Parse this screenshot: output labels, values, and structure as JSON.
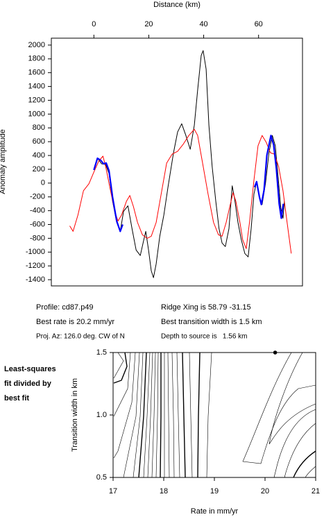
{
  "chart_data": [
    {
      "type": "line",
      "xlabel": "Distance (km)",
      "ylabel": "Anomaly amplitude",
      "xlim": [
        -15.5,
        76
      ],
      "xticks": [
        0,
        20,
        40,
        60
      ],
      "ylim": [
        -1490,
        2100
      ],
      "yticks": [
        -1400,
        -1200,
        -1000,
        -800,
        -600,
        -400,
        -200,
        0,
        200,
        400,
        600,
        800,
        1000,
        1200,
        1400,
        1600,
        1800,
        2000
      ],
      "series": [
        {
          "color": "#000000",
          "width": 1,
          "x": [
            0,
            1.3,
            2.8,
            4.3,
            5.5,
            6.8,
            8.3,
            9.6,
            10.8,
            12.4,
            13.9,
            15.4,
            16.9,
            18.2,
            18.9,
            19.9,
            20.9,
            21.7,
            22.7,
            24,
            25.5,
            27,
            29,
            30.5,
            32,
            33.5,
            35.1,
            36.6,
            37.8,
            39.1,
            39.8,
            40.9,
            41.9,
            43.1,
            44.4,
            45.6,
            46.7,
            47.9,
            49.2,
            50.4,
            51.2,
            52.5,
            53.7,
            55,
            56.2,
            57.3,
            58.3,
            59.3,
            60.3,
            61.3,
            62.5,
            63.8,
            65,
            66.1,
            67.1,
            68.1,
            68.9,
            69.4
          ],
          "values": [
            190,
            360,
            280,
            270,
            140,
            -260,
            -570,
            -700,
            -410,
            -330,
            -660,
            -970,
            -1050,
            -820,
            -700,
            -970,
            -1270,
            -1370,
            -1170,
            -770,
            -460,
            -60,
            440,
            740,
            860,
            690,
            490,
            840,
            1350,
            1850,
            1920,
            1650,
            840,
            240,
            -260,
            -660,
            -870,
            -920,
            -660,
            -40,
            -210,
            -570,
            -820,
            -1020,
            -1070,
            -660,
            -160,
            20,
            -210,
            -310,
            -10,
            440,
            690,
            540,
            90,
            -360,
            -510,
            -260
          ]
        },
        {
          "color": "#ff0000",
          "width": 1,
          "x": [
            -8.8,
            -7.6,
            -5.8,
            -3.8,
            -1.8,
            0,
            1.8,
            3.3,
            4.3,
            5.8,
            7.6,
            8.8,
            10.1,
            11.9,
            13.1,
            14.4,
            15.9,
            17.7,
            19.4,
            20.9,
            22.7,
            24.5,
            26.5,
            28.5,
            30.5,
            32.5,
            34.6,
            36.6,
            37.8,
            39.6,
            41.6,
            43.6,
            45.4,
            46.7,
            48.2,
            49.7,
            50.7,
            51.7,
            53.2,
            54.2,
            55.5,
            56.7,
            58.3,
            59.8,
            61.3,
            62.8,
            64.3,
            65.8,
            67.3,
            68.9,
            70.4,
            71.9
          ],
          "values": [
            -620,
            -700,
            -460,
            -110,
            -10,
            160,
            320,
            390,
            240,
            -60,
            -410,
            -550,
            -460,
            -260,
            -180,
            -340,
            -570,
            -750,
            -800,
            -770,
            -570,
            -160,
            290,
            420,
            460,
            560,
            690,
            780,
            690,
            290,
            -160,
            -570,
            -750,
            -770,
            -570,
            -310,
            -140,
            -260,
            -570,
            -820,
            -950,
            -570,
            40,
            540,
            690,
            590,
            440,
            420,
            240,
            -110,
            -570,
            -1020
          ]
        },
        {
          "color": "#0000ff",
          "width": 2.2,
          "x": [
            0,
            1.3,
            2.5,
            3.5,
            4.5,
            5.5,
            6.8,
            8.3,
            9.6,
            10.5,
            null,
            58.5,
            59.3,
            60.3,
            61,
            62,
            63,
            64.5,
            65.5,
            66.5,
            67.5,
            68.3,
            69
          ],
          "values": [
            190,
            360,
            330,
            280,
            290,
            180,
            -200,
            -550,
            -700,
            -600,
            null,
            -60,
            20,
            -200,
            -310,
            -100,
            400,
            690,
            550,
            200,
            -300,
            -510,
            -300
          ]
        }
      ]
    },
    {
      "type": "contour",
      "xlabel": "Rate in mm/yr",
      "ylabel": "Transition width in km",
      "xlim": [
        17,
        21
      ],
      "xticks": [
        17,
        18,
        19,
        20,
        21
      ],
      "ylim": [
        0.5,
        1.5
      ],
      "yticks": [
        {
          "value": 0.5,
          "label": "0.5"
        },
        {
          "value": 1,
          "label": "1.0"
        },
        {
          "value": 1.5,
          "label": "1.5"
        }
      ],
      "best_fit": {
        "x": 20.2,
        "y": 1.5
      }
    }
  ],
  "info": {
    "profile": "Profile: cd87.p49",
    "rate": "Best rate is 20.2 mm/yr",
    "azimuth": "Proj. Az: 126.0 deg. CW of N",
    "ridge": "Ridge Xing is 58.79 -31.15",
    "width": "Best transition width is 1.5 km",
    "depth": "Depth to source is   1.56 km"
  },
  "side_note": [
    "Least-squares",
    "fit divided by",
    "best fit"
  ]
}
